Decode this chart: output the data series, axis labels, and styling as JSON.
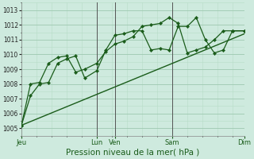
{
  "bg_color": "#ceeade",
  "grid_color_major": "#9ec8b0",
  "grid_color_minor": "#b8dcc8",
  "line_color": "#1a5c1a",
  "xlabel": "Pression niveau de la mer( hPa )",
  "xlabel_fontsize": 7.5,
  "ylim": [
    1004.5,
    1013.5
  ],
  "yticks": [
    1005,
    1006,
    1007,
    1008,
    1009,
    1010,
    1011,
    1012,
    1013
  ],
  "ytick_fontsize": 5.5,
  "xtick_labels": [
    "Jeu",
    "Lun",
    "Ven",
    "Sam",
    "Dim"
  ],
  "xtick_positions": [
    0,
    50,
    62,
    100,
    148
  ],
  "vlines": [
    50,
    62,
    100,
    148
  ],
  "series1_x": [
    0,
    6,
    12,
    18,
    24,
    30,
    36,
    42,
    50,
    56,
    62,
    68,
    74,
    80,
    86,
    92,
    98,
    104,
    110,
    116,
    122,
    128,
    134,
    140,
    148
  ],
  "series1_y": [
    1005.2,
    1007.2,
    1008.0,
    1008.1,
    1009.4,
    1009.7,
    1009.9,
    1008.4,
    1008.9,
    1010.3,
    1011.3,
    1011.4,
    1011.6,
    1011.6,
    1010.3,
    1010.4,
    1010.3,
    1011.9,
    1011.9,
    1012.5,
    1011.0,
    1010.1,
    1010.3,
    1011.6,
    1011.6
  ],
  "series2_x": [
    0,
    6,
    12,
    18,
    24,
    30,
    36,
    42,
    50,
    56,
    62,
    68,
    74,
    80,
    86,
    92,
    98,
    104,
    110,
    116,
    122,
    128,
    134,
    140,
    148
  ],
  "series2_y": [
    1005.2,
    1008.0,
    1008.1,
    1009.4,
    1009.8,
    1009.9,
    1008.8,
    1009.0,
    1009.4,
    1010.2,
    1010.7,
    1010.9,
    1011.2,
    1011.9,
    1012.0,
    1012.1,
    1012.5,
    1012.1,
    1010.1,
    1010.3,
    1010.5,
    1011.0,
    1011.6,
    1011.6,
    1011.6
  ],
  "series3_x": [
    0,
    148
  ],
  "series3_y": [
    1005.2,
    1011.4
  ]
}
